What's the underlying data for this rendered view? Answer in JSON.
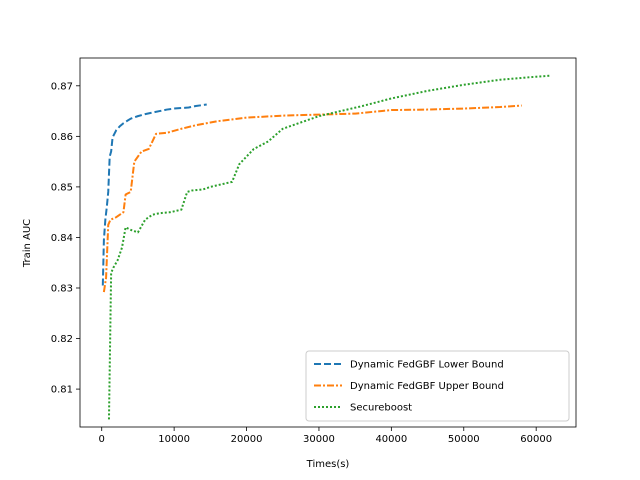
{
  "chart_data": {
    "type": "line",
    "title": "",
    "xlabel": "Times(s)",
    "ylabel": "Train AUC",
    "xlim": [
      -3000,
      65500
    ],
    "ylim": [
      0.8025,
      0.8755
    ],
    "xticks": [
      0,
      10000,
      20000,
      30000,
      40000,
      50000,
      60000
    ],
    "xtick_labels": [
      "0",
      "10000",
      "20000",
      "30000",
      "40000",
      "50000",
      "60000"
    ],
    "yticks": [
      0.81,
      0.82,
      0.83,
      0.84,
      0.85,
      0.86,
      0.87
    ],
    "ytick_labels": [
      "0.81",
      "0.82",
      "0.83",
      "0.84",
      "0.85",
      "0.86",
      "0.87"
    ],
    "grid": false,
    "legend_position": "lower-right",
    "series": [
      {
        "name": "Dynamic FedGBF Lower Bound",
        "color": "#1f77b4",
        "dash": "dashed",
        "x": [
          150,
          300,
          500,
          700,
          900,
          1100,
          1300,
          1500,
          2000,
          2500,
          3000,
          4000,
          5000,
          6000,
          7000,
          8000,
          9000,
          10000,
          11000,
          12000,
          13000,
          14500
        ],
        "y": [
          0.8305,
          0.8395,
          0.8435,
          0.846,
          0.849,
          0.856,
          0.857,
          0.8598,
          0.8612,
          0.862,
          0.8626,
          0.8635,
          0.864,
          0.8644,
          0.8647,
          0.865,
          0.8653,
          0.8655,
          0.8656,
          0.8657,
          0.866,
          0.8663
        ]
      },
      {
        "name": "Dynamic FedGBF Upper Bound",
        "color": "#ff7f0e",
        "dash": "dashdot",
        "x": [
          300,
          600,
          900,
          1200,
          2000,
          3000,
          3300,
          4000,
          4500,
          5500,
          6500,
          7500,
          9000,
          11000,
          13000,
          16000,
          20000,
          25000,
          30000,
          35000,
          40000,
          45000,
          50000,
          55000,
          58000
        ],
        "y": [
          0.8292,
          0.832,
          0.8425,
          0.8435,
          0.844,
          0.845,
          0.8485,
          0.849,
          0.855,
          0.857,
          0.8575,
          0.8605,
          0.8607,
          0.8615,
          0.8622,
          0.863,
          0.8637,
          0.8641,
          0.8643,
          0.8645,
          0.8652,
          0.8653,
          0.8655,
          0.8658,
          0.8661
        ]
      },
      {
        "name": "Secureboost",
        "color": "#2ca02c",
        "dash": "dotted",
        "x": [
          1000,
          1300,
          1600,
          2200,
          2800,
          3300,
          4000,
          5000,
          6000,
          7000,
          8000,
          9500,
          11000,
          11800,
          12500,
          14000,
          15000,
          16500,
          18000,
          19000,
          21000,
          23000,
          25000,
          27000,
          30000,
          33000,
          36000,
          40000,
          45000,
          50000,
          55000,
          60000,
          62000
        ],
        "y": [
          0.804,
          0.833,
          0.834,
          0.8355,
          0.838,
          0.842,
          0.8415,
          0.841,
          0.8435,
          0.8445,
          0.8448,
          0.845,
          0.8455,
          0.849,
          0.8493,
          0.8495,
          0.85,
          0.8505,
          0.851,
          0.8545,
          0.8575,
          0.859,
          0.8615,
          0.8625,
          0.864,
          0.865,
          0.866,
          0.8675,
          0.869,
          0.8702,
          0.8712,
          0.8718,
          0.872
        ]
      }
    ]
  }
}
